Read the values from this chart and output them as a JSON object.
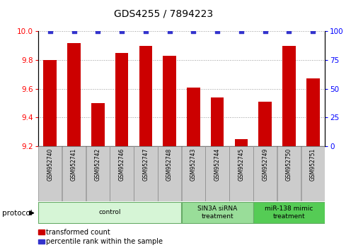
{
  "title": "GDS4255 / 7894223",
  "samples": [
    "GSM952740",
    "GSM952741",
    "GSM952742",
    "GSM952746",
    "GSM952747",
    "GSM952748",
    "GSM952743",
    "GSM952744",
    "GSM952745",
    "GSM952749",
    "GSM952750",
    "GSM952751"
  ],
  "transformed_count": [
    9.8,
    9.92,
    9.5,
    9.85,
    9.9,
    9.83,
    9.61,
    9.54,
    9.25,
    9.51,
    9.9,
    9.67
  ],
  "percentile_rank": [
    100,
    100,
    100,
    100,
    100,
    100,
    100,
    100,
    100,
    100,
    100,
    100
  ],
  "ylim_left": [
    9.2,
    10.0
  ],
  "ylim_right": [
    0,
    100
  ],
  "yticks_left": [
    9.2,
    9.4,
    9.6,
    9.8,
    10.0
  ],
  "yticks_right": [
    0,
    25,
    50,
    75,
    100
  ],
  "bar_color": "#cc0000",
  "dot_color": "#3333cc",
  "groups": [
    {
      "label": "control",
      "start": 0,
      "end": 5,
      "color": "#d6f5d6",
      "border_color": "#66aa66"
    },
    {
      "label": "SIN3A siRNA\ntreatment",
      "start": 6,
      "end": 8,
      "color": "#99dd99",
      "border_color": "#66aa66"
    },
    {
      "label": "miR-138 mimic\ntreatment",
      "start": 9,
      "end": 11,
      "color": "#55cc55",
      "border_color": "#66aa66"
    }
  ],
  "protocol_label": "protocol",
  "legend_items": [
    {
      "label": "transformed count",
      "color": "#cc0000"
    },
    {
      "label": "percentile rank within the sample",
      "color": "#3333cc"
    }
  ],
  "grid_color": "#999999",
  "title_fontsize": 10,
  "tick_fontsize": 7.5,
  "bar_width": 0.55,
  "label_box_color": "#cccccc",
  "label_box_edge": "#888888"
}
